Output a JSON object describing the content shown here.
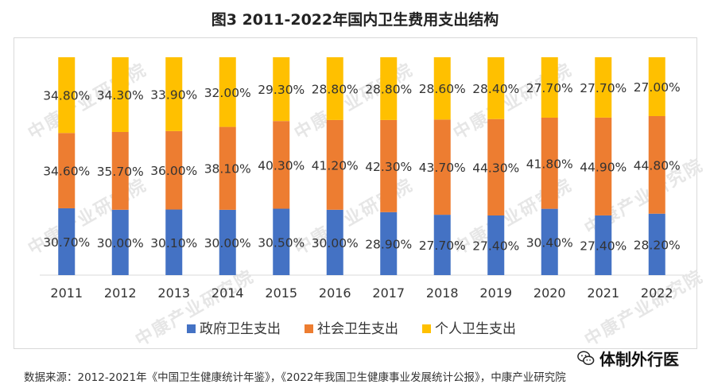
{
  "page_title": "图3 2011-2022年国内卫生费用支出结构",
  "source": "数据来源：2012-2021年《中国卫生健康统计年鉴》，《2022年我国卫生健康事业发展统计公报》，中康产业研究院",
  "brand": {
    "icon": "wechat-icon",
    "name": "体制外行医"
  },
  "watermark_text": "中康产业研究院",
  "chart_data": {
    "type": "bar",
    "stacked": true,
    "percent_stacked": true,
    "categories": [
      "2011",
      "2012",
      "2013",
      "2014",
      "2015",
      "2016",
      "2017",
      "2018",
      "2019",
      "2020",
      "2021",
      "2022"
    ],
    "series": [
      {
        "name": "政府卫生支出",
        "color": "#4472c4",
        "values": [
          30.7,
          30.0,
          30.1,
          30.0,
          30.5,
          30.0,
          28.9,
          27.7,
          27.4,
          30.4,
          27.4,
          28.2
        ],
        "labels": [
          "30.70%",
          "30.00%",
          "30.10%",
          "30.00%",
          "30.50%",
          "30.00%",
          "28.90%",
          "27.70%",
          "27.40%",
          "30.40%",
          "27.40%",
          "28.20%"
        ]
      },
      {
        "name": "社会卫生支出",
        "color": "#ed7d31",
        "values": [
          34.6,
          35.7,
          36.0,
          38.1,
          40.3,
          41.2,
          42.3,
          43.7,
          44.3,
          41.8,
          44.9,
          44.8
        ],
        "labels": [
          "34.60%",
          "35.70%",
          "36.00%",
          "38.10%",
          "40.30%",
          "41.20%",
          "42.30%",
          "43.70%",
          "44.30%",
          "41.80%",
          "44.90%",
          "44.80%"
        ]
      },
      {
        "name": "个人卫生支出",
        "color": "#ffc000",
        "values": [
          34.8,
          34.3,
          33.9,
          32.0,
          29.3,
          28.8,
          28.8,
          28.6,
          28.4,
          27.7,
          27.7,
          27.0
        ],
        "labels": [
          "34.80%",
          "34.30%",
          "33.90%",
          "32.00%",
          "29.30%",
          "28.80%",
          "28.80%",
          "28.60%",
          "28.40%",
          "27.70%",
          "27.70%",
          "27.00%"
        ]
      }
    ],
    "legend_position": "bottom",
    "grid": false
  }
}
